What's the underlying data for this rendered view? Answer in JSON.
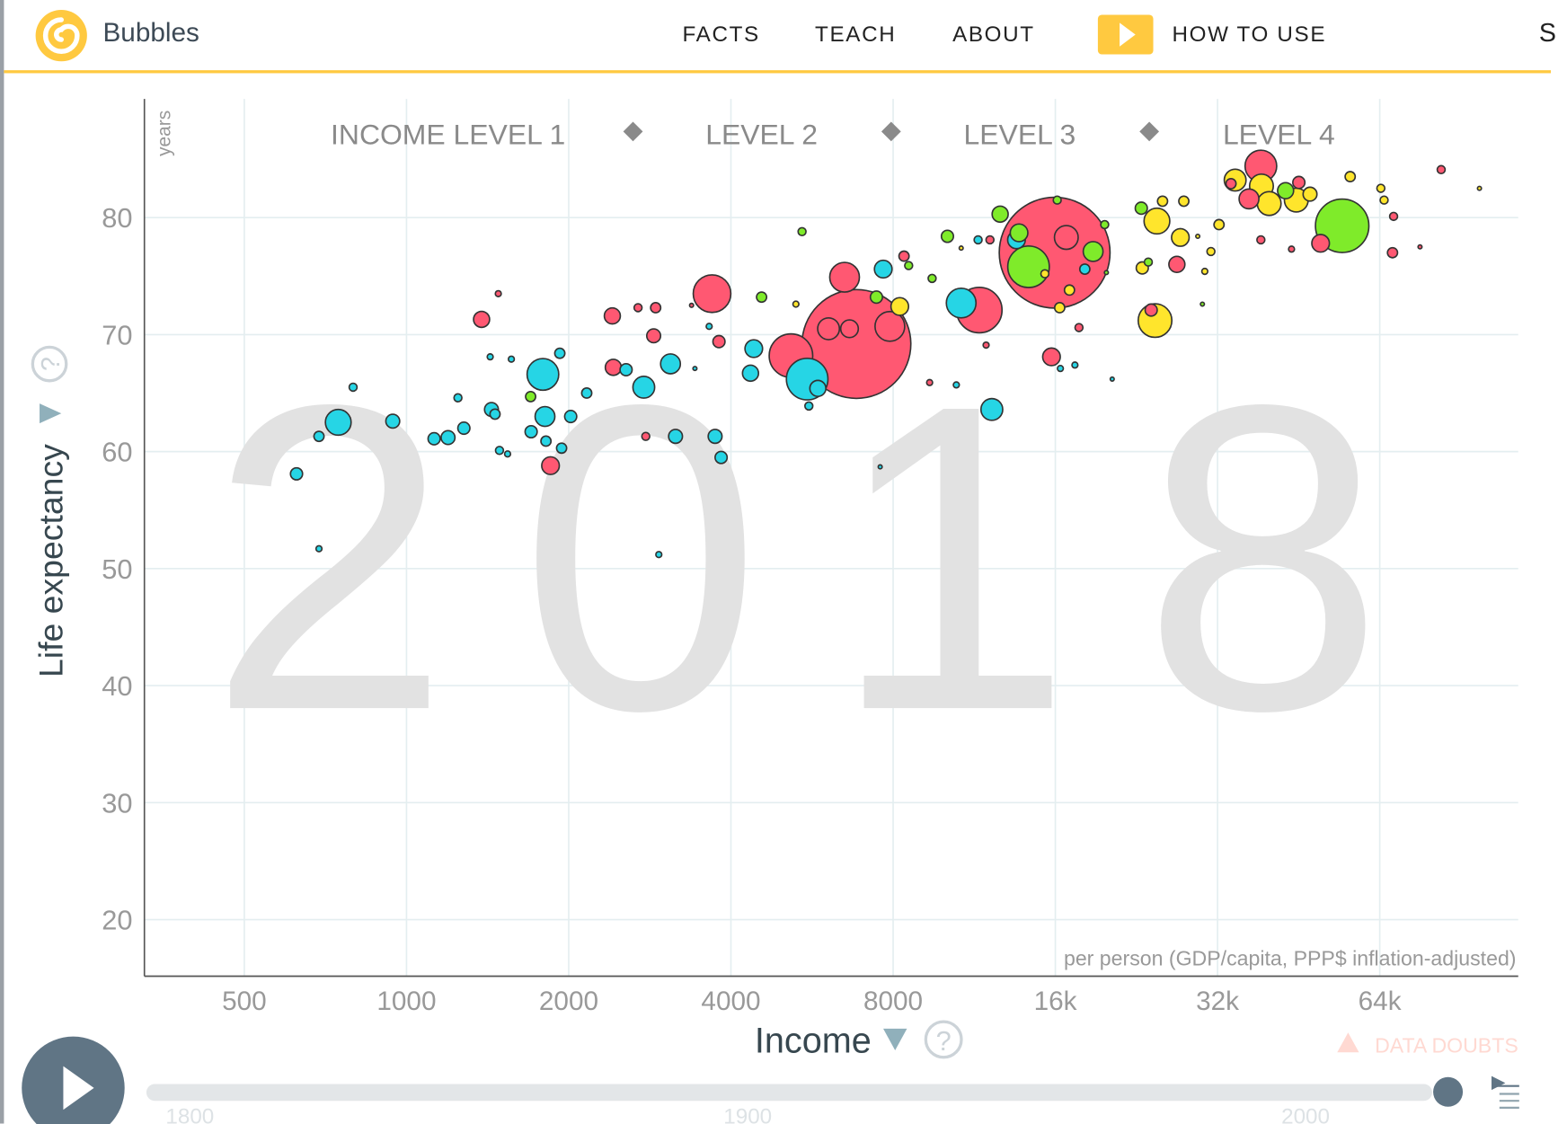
{
  "header": {
    "app_name": "Bubbles",
    "nav": [
      "FACTS",
      "TEACH",
      "ABOUT"
    ],
    "how_to_use": "HOW TO USE",
    "cut_item": "S",
    "accent": "#ffc940"
  },
  "chart_data": {
    "type": "scatter",
    "subtype": "bubble",
    "year": "2018",
    "xlabel": "Income",
    "xunit": "per person (GDP/capita, PPP$ inflation-adjusted)",
    "ylabel": "Life expectancy",
    "yunit": "years",
    "xscale": "log",
    "xlim": [
      350,
      115000
    ],
    "ylim": [
      15,
      90
    ],
    "xticks": [
      500,
      1000,
      2000,
      4000,
      8000,
      16000,
      32000,
      64000
    ],
    "xtick_labels": [
      "500",
      "1000",
      "2000",
      "4000",
      "8000",
      "16k",
      "32k",
      "64k"
    ],
    "yticks": [
      20,
      30,
      40,
      50,
      60,
      70,
      80
    ],
    "ytick_labels": [
      "20",
      "30",
      "40",
      "50",
      "60",
      "70",
      "80"
    ],
    "grid": true,
    "income_levels": [
      "INCOME LEVEL 1",
      "LEVEL 2",
      "LEVEL 3",
      "LEVEL 4"
    ],
    "income_level_bounds": [
      3000,
      8000,
      24000
    ],
    "region_colors": {
      "africa": "#26d5e5",
      "asia": "#ff5872",
      "americas": "#7feb2a",
      "europe": "#ffe52c"
    },
    "point_fields": [
      "income",
      "life_expectancy",
      "population_millions",
      "region"
    ],
    "points": [
      [
        6840,
        69.2,
        1400,
        "asia"
      ],
      [
        15950,
        77.0,
        1450,
        "asia"
      ],
      [
        5170,
        68.2,
        224,
        "asia"
      ],
      [
        10700,
        72.7,
        104,
        "africa"
      ],
      [
        11560,
        72.1,
        245,
        "asia"
      ],
      [
        14270,
        75.8,
        204,
        "americas"
      ],
      [
        5540,
        66.2,
        204,
        "africa"
      ],
      [
        3690,
        73.5,
        167,
        "asia"
      ],
      [
        54500,
        79.3,
        337,
        "americas"
      ],
      [
        24500,
        71.2,
        134,
        "europe"
      ],
      [
        1791,
        66.6,
        118,
        "africa"
      ],
      [
        7890,
        70.7,
        104,
        "asia"
      ],
      [
        6500,
        74.9,
        104,
        "asia"
      ],
      [
        38500,
        84.4,
        118,
        "asia"
      ],
      [
        747,
        62.5,
        78,
        "africa"
      ],
      [
        24700,
        79.7,
        78,
        "europe"
      ],
      [
        38600,
        82.7,
        67,
        "europe"
      ],
      [
        39900,
        81.2,
        67,
        "europe"
      ],
      [
        44800,
        81.5,
        67,
        "europe"
      ],
      [
        16770,
        78.3,
        67,
        "asia"
      ],
      [
        34500,
        83.2,
        56,
        "europe"
      ],
      [
        6070,
        70.5,
        56,
        "asia"
      ],
      [
        2757,
        65.5,
        56,
        "africa"
      ],
      [
        12200,
        63.6,
        56,
        "africa"
      ],
      [
        3090,
        67.5,
        46,
        "africa"
      ],
      [
        1807,
        63.0,
        46,
        "africa"
      ],
      [
        18800,
        77.1,
        46,
        "americas"
      ],
      [
        36600,
        81.6,
        46,
        "asia"
      ],
      [
        6640,
        70.5,
        37,
        "asia"
      ],
      [
        4410,
        68.8,
        37,
        "africa"
      ],
      [
        7670,
        75.6,
        37,
        "africa"
      ],
      [
        13550,
        78.1,
        37,
        "africa"
      ],
      [
        13700,
        78.7,
        37,
        "americas"
      ],
      [
        15740,
        68.1,
        37,
        "asia"
      ],
      [
        1850,
        58.8,
        37,
        "asia"
      ],
      [
        27300,
        78.3,
        37,
        "europe"
      ],
      [
        8230,
        72.4,
        37,
        "europe"
      ],
      [
        49700,
        77.8,
        37,
        "asia"
      ],
      [
        1378,
        71.3,
        30,
        "asia"
      ],
      [
        2410,
        71.6,
        30,
        "asia"
      ],
      [
        2420,
        67.2,
        30,
        "asia"
      ],
      [
        4350,
        66.7,
        30,
        "africa"
      ],
      [
        5800,
        65.4,
        30,
        "africa"
      ],
      [
        12640,
        80.3,
        30,
        "americas"
      ],
      [
        26900,
        76.0,
        30,
        "asia"
      ],
      [
        42800,
        82.3,
        30,
        "americas"
      ],
      [
        943,
        62.6,
        23,
        "africa"
      ],
      [
        1194,
        61.2,
        23,
        "africa"
      ],
      [
        1438,
        63.6,
        23,
        "africa"
      ],
      [
        3157,
        61.3,
        23,
        "africa"
      ],
      [
        3738,
        61.3,
        23,
        "africa"
      ],
      [
        2875,
        69.9,
        23,
        "asia"
      ],
      [
        47500,
        82.0,
        23,
        "europe"
      ],
      [
        625,
        58.1,
        17,
        "africa"
      ],
      [
        1125,
        61.1,
        17,
        "africa"
      ],
      [
        1278,
        62.0,
        17,
        "africa"
      ],
      [
        1703,
        61.7,
        17,
        "africa"
      ],
      [
        2017,
        63.0,
        17,
        "africa"
      ],
      [
        2556,
        67.0,
        17,
        "africa"
      ],
      [
        3836,
        59.5,
        17,
        "africa"
      ],
      [
        3800,
        69.4,
        17,
        "asia"
      ],
      [
        10090,
        78.4,
        17,
        "americas"
      ],
      [
        7450,
        73.2,
        17,
        "americas"
      ],
      [
        23100,
        80.8,
        17,
        "americas"
      ],
      [
        23200,
        75.7,
        17,
        "europe"
      ],
      [
        24100,
        72.1,
        17,
        "asia"
      ],
      [
        45300,
        83.0,
        17,
        "asia"
      ],
      [
        688,
        61.3,
        12,
        "africa"
      ],
      [
        1460,
        63.2,
        12,
        "africa"
      ],
      [
        1925,
        68.4,
        12,
        "africa"
      ],
      [
        1815,
        60.9,
        12,
        "africa"
      ],
      [
        1940,
        60.3,
        12,
        "africa"
      ],
      [
        2160,
        65.0,
        12,
        "africa"
      ],
      [
        18150,
        75.6,
        12,
        "africa"
      ],
      [
        2900,
        72.3,
        12,
        "asia"
      ],
      [
        8380,
        76.7,
        12,
        "asia"
      ],
      [
        33900,
        82.9,
        12,
        "asia"
      ],
      [
        67600,
        77.0,
        12,
        "asia"
      ],
      [
        4560,
        73.2,
        12,
        "americas"
      ],
      [
        1700,
        64.7,
        12,
        "americas"
      ],
      [
        25300,
        81.4,
        12,
        "europe"
      ],
      [
        27700,
        81.4,
        12,
        "europe"
      ],
      [
        32200,
        79.4,
        12,
        "europe"
      ],
      [
        56400,
        83.5,
        12,
        "europe"
      ],
      [
        17000,
        73.8,
        12,
        "europe"
      ],
      [
        16300,
        72.3,
        12,
        "europe"
      ],
      [
        796,
        65.5,
        7.4,
        "africa"
      ],
      [
        1246,
        64.6,
        7.4,
        "africa"
      ],
      [
        1488,
        60.1,
        7.4,
        "africa"
      ],
      [
        5580,
        63.9,
        7.4,
        "africa"
      ],
      [
        11500,
        78.1,
        7.4,
        "africa"
      ],
      [
        2690,
        72.3,
        7.4,
        "asia"
      ],
      [
        2780,
        61.3,
        7.4,
        "asia"
      ],
      [
        17700,
        70.6,
        7.4,
        "asia"
      ],
      [
        38500,
        78.1,
        7.4,
        "asia"
      ],
      [
        67900,
        80.1,
        7.4,
        "asia"
      ],
      [
        83200,
        84.1,
        7.4,
        "asia"
      ],
      [
        12100,
        78.1,
        7.4,
        "asia"
      ],
      [
        16130,
        81.5,
        7.4,
        "americas"
      ],
      [
        19760,
        79.4,
        7.4,
        "americas"
      ],
      [
        5420,
        78.8,
        7.4,
        "americas"
      ],
      [
        8550,
        75.9,
        7.4,
        "americas"
      ],
      [
        9450,
        74.8,
        7.4,
        "americas"
      ],
      [
        23800,
        76.2,
        7.4,
        "americas"
      ],
      [
        31100,
        77.1,
        7.4,
        "europe"
      ],
      [
        64300,
        82.5,
        7.4,
        "europe"
      ],
      [
        65200,
        81.5,
        7.4,
        "europe"
      ],
      [
        15300,
        75.2,
        7.4,
        "europe"
      ],
      [
        688,
        51.7,
        4.2,
        "africa"
      ],
      [
        1430,
        68.1,
        4.2,
        "africa"
      ],
      [
        1565,
        67.9,
        4.2,
        "africa"
      ],
      [
        1540,
        59.8,
        4.2,
        "africa"
      ],
      [
        2939,
        51.2,
        4.2,
        "africa"
      ],
      [
        3645,
        70.7,
        4.2,
        "africa"
      ],
      [
        16350,
        67.1,
        4.2,
        "africa"
      ],
      [
        17400,
        67.4,
        4.2,
        "africa"
      ],
      [
        10480,
        65.7,
        4.2,
        "africa"
      ],
      [
        1480,
        73.5,
        4.2,
        "asia"
      ],
      [
        43900,
        77.3,
        4.2,
        "asia"
      ],
      [
        9350,
        65.9,
        4.2,
        "asia"
      ],
      [
        11900,
        69.1,
        4.2,
        "asia"
      ],
      [
        5280,
        72.6,
        4.2,
        "europe"
      ],
      [
        30300,
        75.4,
        4.2,
        "europe"
      ],
      [
        20400,
        66.2,
        1.9,
        "africa"
      ],
      [
        7570,
        58.7,
        1.9,
        "africa"
      ],
      [
        3430,
        67.1,
        1.9,
        "africa"
      ],
      [
        3380,
        72.5,
        1.9,
        "asia"
      ],
      [
        76000,
        77.5,
        1.9,
        "asia"
      ],
      [
        98000,
        82.5,
        1.9,
        "europe"
      ],
      [
        30000,
        72.6,
        1.9,
        "americas"
      ],
      [
        19900,
        75.3,
        1.9,
        "americas"
      ],
      [
        29400,
        78.4,
        1.9,
        "europe"
      ],
      [
        10700,
        77.4,
        1.9,
        "europe"
      ]
    ]
  },
  "y_axis": {
    "label": "Life expectancy",
    "unit": "years"
  },
  "x_axis": {
    "label": "Income",
    "unit": "per person (GDP/capita, PPP$ inflation-adjusted)"
  },
  "data_doubts": "DATA DOUBTS",
  "timeline": {
    "labels": [
      "1800",
      "1900",
      "2000"
    ],
    "start": 1800,
    "end": 2018,
    "value": 2018
  }
}
